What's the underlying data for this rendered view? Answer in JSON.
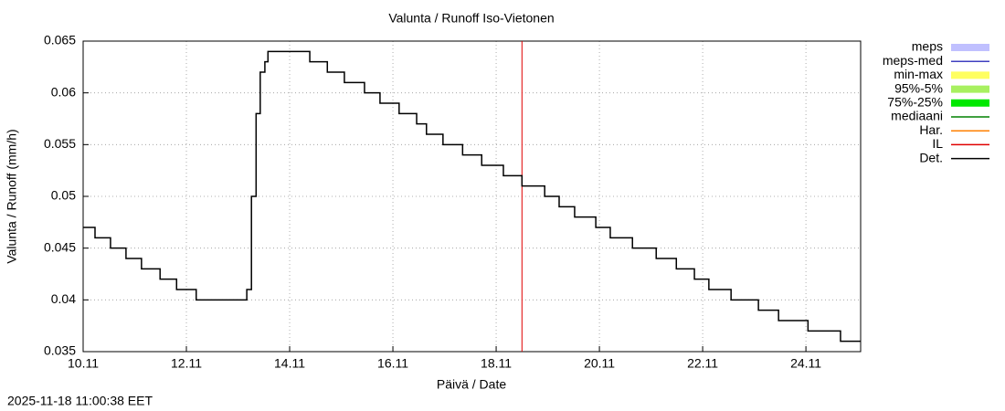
{
  "chart_data": {
    "type": "step-line",
    "title": "Valunta / Runoff  Iso-Vietonen",
    "x_label": "Päivä / Date",
    "y_label": "Valunta / Runoff (mm/h)",
    "timestamp": "2025-11-18 11:00:38 EET",
    "xlim": [
      10,
      25.06
    ],
    "ylim": [
      0.035,
      0.065
    ],
    "xticks": [
      {
        "value": 10,
        "label": "10.11"
      },
      {
        "value": 12,
        "label": "12.11"
      },
      {
        "value": 14,
        "label": "14.11"
      },
      {
        "value": 16,
        "label": "16.11"
      },
      {
        "value": 18,
        "label": "18.11"
      },
      {
        "value": 20,
        "label": "20.11"
      },
      {
        "value": 22,
        "label": "22.11"
      },
      {
        "value": 24,
        "label": "24.11"
      }
    ],
    "yticks": [
      0.035,
      0.04,
      0.045,
      0.05,
      0.055,
      0.06,
      0.065
    ],
    "grid": true,
    "vline": {
      "x": 18.5,
      "color": "#e00000"
    },
    "legend": [
      {
        "name": "meps",
        "color": "#c0c0ff",
        "thick": true
      },
      {
        "name": "meps-med",
        "color": "#4040c0",
        "thick": false
      },
      {
        "name": "min-max",
        "color": "#ffff60",
        "thick": true
      },
      {
        "name": "95%-5%",
        "color": "#a8f060",
        "thick": true
      },
      {
        "name": "75%-25%",
        "color": "#00e800",
        "thick": true
      },
      {
        "name": "mediaani",
        "color": "#008000",
        "thick": false
      },
      {
        "name": "Har.",
        "color": "#ff8000",
        "thick": false
      },
      {
        "name": "IL",
        "color": "#e00000",
        "thick": false
      },
      {
        "name": "Det.",
        "color": "#000000",
        "thick": false
      }
    ],
    "series": [
      {
        "name": "Det.",
        "color": "#000000",
        "x": [
          10.0,
          10.23,
          10.53,
          10.83,
          11.13,
          11.49,
          11.81,
          12.19,
          13.12,
          13.17,
          13.26,
          13.35,
          13.43,
          13.52,
          13.58,
          14.35,
          14.39,
          14.73,
          15.06,
          15.45,
          15.75,
          16.12,
          16.46,
          16.65,
          16.97,
          17.35,
          17.72,
          18.14,
          18.5,
          18.94,
          19.22,
          19.52,
          19.93,
          20.21,
          20.64,
          21.1,
          21.49,
          21.84,
          22.12,
          22.55,
          23.08,
          23.47,
          24.04,
          24.67,
          25.06
        ],
        "values": [
          0.047,
          0.046,
          0.045,
          0.044,
          0.043,
          0.042,
          0.041,
          0.04,
          0.04,
          0.041,
          0.05,
          0.058,
          0.062,
          0.063,
          0.064,
          0.064,
          0.063,
          0.062,
          0.061,
          0.06,
          0.059,
          0.058,
          0.057,
          0.056,
          0.055,
          0.054,
          0.053,
          0.052,
          0.051,
          0.05,
          0.049,
          0.048,
          0.047,
          0.046,
          0.045,
          0.044,
          0.043,
          0.042,
          0.041,
          0.04,
          0.039,
          0.038,
          0.037,
          0.036,
          0.036
        ]
      }
    ]
  }
}
